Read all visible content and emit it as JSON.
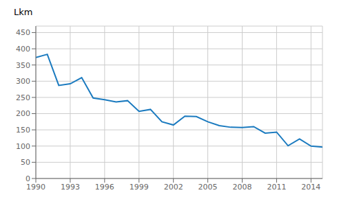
{
  "chart_data": {
    "type": "line",
    "ylabel": "Lkm",
    "x": [
      1990,
      1991,
      1992,
      1993,
      1994,
      1995,
      1996,
      1997,
      1998,
      1999,
      2000,
      2001,
      2002,
      2003,
      2004,
      2005,
      2006,
      2007,
      2008,
      2009,
      2010,
      2011,
      2012,
      2013,
      2014,
      2015
    ],
    "values": [
      373,
      383,
      287,
      292,
      311,
      248,
      243,
      236,
      240,
      207,
      213,
      175,
      165,
      192,
      191,
      175,
      163,
      158,
      157,
      160,
      140,
      143,
      101,
      122,
      100,
      97
    ],
    "color": "#1a7abf",
    "xlim": [
      1990,
      2015
    ],
    "xticks": [
      1990,
      1993,
      1996,
      1999,
      2002,
      2005,
      2008,
      2011,
      2014
    ],
    "ylim": [
      0,
      470
    ],
    "yticks": [
      0,
      50,
      100,
      150,
      200,
      250,
      300,
      350,
      400,
      450
    ],
    "grid": true
  }
}
